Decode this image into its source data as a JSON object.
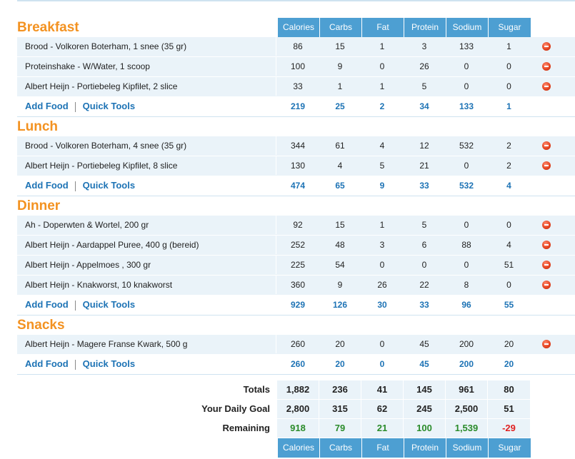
{
  "columns": [
    "Calories",
    "Carbs",
    "Fat",
    "Protein",
    "Sodium",
    "Sugar"
  ],
  "actions": {
    "add_food": "Add Food",
    "quick_tools": "Quick Tools"
  },
  "meals": [
    {
      "title": "Breakfast",
      "entries": [
        {
          "name": "Brood - Volkoren Boterham, 1 snee (35 gr)",
          "values": [
            "86",
            "15",
            "1",
            "3",
            "133",
            "1"
          ]
        },
        {
          "name": "Proteinshake - W/Water, 1 scoop",
          "values": [
            "100",
            "9",
            "0",
            "26",
            "0",
            "0"
          ]
        },
        {
          "name": "Albert Heijn - Portiebeleg Kipfilet, 2 slice",
          "values": [
            "33",
            "1",
            "1",
            "5",
            "0",
            "0"
          ]
        }
      ],
      "totals": [
        "219",
        "25",
        "2",
        "34",
        "133",
        "1"
      ]
    },
    {
      "title": "Lunch",
      "entries": [
        {
          "name": "Brood - Volkoren Boterham, 4 snee (35 gr)",
          "values": [
            "344",
            "61",
            "4",
            "12",
            "532",
            "2"
          ]
        },
        {
          "name": "Albert Heijn - Portiebeleg Kipfilet, 8 slice",
          "values": [
            "130",
            "4",
            "5",
            "21",
            "0",
            "2"
          ]
        }
      ],
      "totals": [
        "474",
        "65",
        "9",
        "33",
        "532",
        "4"
      ]
    },
    {
      "title": "Dinner",
      "entries": [
        {
          "name": "Ah - Doperwten & Wortel, 200 gr",
          "values": [
            "92",
            "15",
            "1",
            "5",
            "0",
            "0"
          ]
        },
        {
          "name": "Albert Heijn - Aardappel Puree, 400 g (bereid)",
          "values": [
            "252",
            "48",
            "3",
            "6",
            "88",
            "4"
          ]
        },
        {
          "name": "Albert Heijn - Appelmoes , 300 gr",
          "values": [
            "225",
            "54",
            "0",
            "0",
            "0",
            "51"
          ]
        },
        {
          "name": "Albert Heijn - Knakworst, 10 knakworst",
          "values": [
            "360",
            "9",
            "26",
            "22",
            "8",
            "0"
          ]
        }
      ],
      "totals": [
        "929",
        "126",
        "30",
        "33",
        "96",
        "55"
      ]
    },
    {
      "title": "Snacks",
      "entries": [
        {
          "name": "Albert Heijn - Magere Franse Kwark, 500 g",
          "values": [
            "260",
            "20",
            "0",
            "45",
            "200",
            "20"
          ]
        }
      ],
      "totals": [
        "260",
        "20",
        "0",
        "45",
        "200",
        "20"
      ]
    }
  ],
  "summary": {
    "totals": {
      "label": "Totals",
      "values": [
        "1,882",
        "236",
        "41",
        "145",
        "961",
        "80"
      ]
    },
    "goal": {
      "label": "Your Daily Goal",
      "values": [
        "2,800",
        "315",
        "62",
        "245",
        "2,500",
        "51"
      ]
    },
    "remaining": {
      "label": "Remaining",
      "values": [
        "918",
        "79",
        "21",
        "100",
        "1,539",
        "-29"
      ]
    }
  },
  "colors": {
    "accent": "#f39221",
    "header": "#4d9fd2",
    "link": "#1d73b5",
    "positive": "#2a8b2a",
    "negative": "#e02020"
  },
  "icons": {
    "remove": "remove-icon"
  }
}
